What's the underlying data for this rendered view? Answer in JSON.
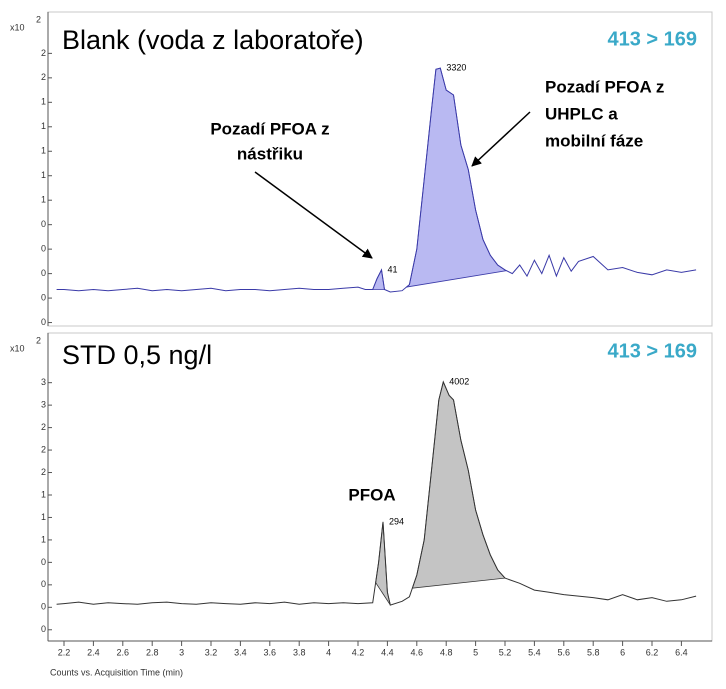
{
  "chart_data": [
    {
      "type": "line",
      "title": "Blank (voda z laboratoře)",
      "transition": "413 > 169",
      "y_multiplier": {
        "base": "x10",
        "exponent": 2
      },
      "color": "#3a3aa8",
      "fill": "#b9b9f2",
      "xlim": [
        2.1,
        6.55
      ],
      "ylim": [
        -0.02,
        2.53
      ],
      "yticks": [
        {
          "value": 0,
          "label": "0"
        },
        {
          "value": 0.2,
          "label": "0"
        },
        {
          "value": 0.4,
          "label": "0"
        },
        {
          "value": 0.6,
          "label": "0"
        },
        {
          "value": 0.8,
          "label": "0"
        },
        {
          "value": 1.0,
          "label": "1"
        },
        {
          "value": 1.2,
          "label": "1"
        },
        {
          "value": 1.4,
          "label": "1"
        },
        {
          "value": 1.6,
          "label": "1"
        },
        {
          "value": 1.8,
          "label": "1"
        },
        {
          "value": 2.0,
          "label": "2"
        },
        {
          "value": 2.2,
          "label": "2"
        }
      ],
      "x": [
        2.15,
        2.2,
        2.3,
        2.4,
        2.5,
        2.6,
        2.7,
        2.8,
        2.9,
        3.0,
        3.1,
        3.2,
        3.3,
        3.4,
        3.5,
        3.6,
        3.7,
        3.8,
        3.9,
        4.0,
        4.1,
        4.2,
        4.25,
        4.3,
        4.33,
        4.36,
        4.38,
        4.42,
        4.5,
        4.55,
        4.6,
        4.65,
        4.7,
        4.73,
        4.76,
        4.8,
        4.85,
        4.9,
        4.95,
        5.0,
        5.05,
        5.1,
        5.15,
        5.2,
        5.25,
        5.3,
        5.35,
        5.4,
        5.45,
        5.5,
        5.55,
        5.6,
        5.65,
        5.7,
        5.8,
        5.9,
        6.0,
        6.1,
        6.2,
        6.3,
        6.4,
        6.5
      ],
      "values": [
        0.27,
        0.27,
        0.26,
        0.27,
        0.26,
        0.27,
        0.28,
        0.26,
        0.27,
        0.26,
        0.27,
        0.28,
        0.26,
        0.27,
        0.27,
        0.26,
        0.27,
        0.28,
        0.27,
        0.27,
        0.28,
        0.29,
        0.27,
        0.27,
        0.36,
        0.43,
        0.27,
        0.25,
        0.26,
        0.31,
        0.6,
        1.17,
        1.74,
        2.07,
        2.08,
        1.9,
        1.86,
        1.45,
        1.25,
        0.92,
        0.68,
        0.55,
        0.47,
        0.43,
        0.4,
        0.47,
        0.38,
        0.51,
        0.4,
        0.55,
        0.38,
        0.53,
        0.42,
        0.5,
        0.54,
        0.43,
        0.45,
        0.41,
        0.39,
        0.43,
        0.41,
        0.43
      ],
      "peaks": [
        {
          "start": 4.3,
          "end": 4.38,
          "apex": 4.36,
          "value": 41
        },
        {
          "start": 4.53,
          "end": 5.21,
          "apex": 4.76,
          "value": 3320
        }
      ],
      "annotations": [
        {
          "lines": [
            "Pozadí PFOA z",
            "nástřiku"
          ]
        },
        {
          "lines": [
            "Pozadí PFOA z",
            "UHPLC a",
            "mobilní fáze"
          ]
        }
      ]
    },
    {
      "type": "line",
      "title": "STD 0,5 ng/l",
      "transition": "413 > 169",
      "y_multiplier": {
        "base": "x10",
        "exponent": 2
      },
      "color": "#333333",
      "fill": "#c4c4c4",
      "xlim": [
        2.1,
        6.55
      ],
      "ylim": [
        -0.15,
        3.95
      ],
      "xticks": [
        2.2,
        2.4,
        2.6,
        2.8,
        3,
        3.2,
        3.4,
        3.6,
        3.8,
        4,
        4.2,
        4.4,
        4.6,
        4.8,
        5,
        5.2,
        5.4,
        5.6,
        5.8,
        6,
        6.2,
        6.4
      ],
      "xlabel": "Counts vs. Acquisition Time (min)",
      "yticks": [
        {
          "value": 0,
          "label": "0"
        },
        {
          "value": 0.3,
          "label": "0"
        },
        {
          "value": 0.6,
          "label": "0"
        },
        {
          "value": 0.9,
          "label": "0"
        },
        {
          "value": 1.2,
          "label": "1"
        },
        {
          "value": 1.5,
          "label": "1"
        },
        {
          "value": 1.8,
          "label": "1"
        },
        {
          "value": 2.1,
          "label": "2"
        },
        {
          "value": 2.4,
          "label": "2"
        },
        {
          "value": 2.7,
          "label": "2"
        },
        {
          "value": 3.0,
          "label": "3"
        },
        {
          "value": 3.3,
          "label": "3"
        }
      ],
      "x": [
        2.15,
        2.2,
        2.3,
        2.4,
        2.5,
        2.6,
        2.7,
        2.8,
        2.9,
        3.0,
        3.1,
        3.2,
        3.3,
        3.4,
        3.5,
        3.6,
        3.7,
        3.8,
        3.9,
        4.0,
        4.1,
        4.2,
        4.3,
        4.34,
        4.37,
        4.4,
        4.42,
        4.5,
        4.55,
        4.6,
        4.65,
        4.7,
        4.75,
        4.78,
        4.82,
        4.85,
        4.9,
        4.95,
        5.0,
        5.05,
        5.1,
        5.15,
        5.2,
        5.3,
        5.4,
        5.5,
        5.6,
        5.7,
        5.8,
        5.9,
        6.0,
        6.1,
        6.2,
        6.3,
        6.4,
        6.5
      ],
      "values": [
        0.34,
        0.35,
        0.37,
        0.34,
        0.36,
        0.35,
        0.34,
        0.36,
        0.37,
        0.35,
        0.34,
        0.36,
        0.35,
        0.34,
        0.36,
        0.35,
        0.37,
        0.34,
        0.36,
        0.35,
        0.36,
        0.35,
        0.36,
        0.9,
        1.44,
        0.5,
        0.33,
        0.38,
        0.44,
        0.73,
        1.2,
        2.13,
        3.07,
        3.31,
        3.13,
        3.07,
        2.53,
        2.13,
        1.6,
        1.27,
        1.0,
        0.8,
        0.69,
        0.62,
        0.53,
        0.5,
        0.47,
        0.45,
        0.43,
        0.4,
        0.47,
        0.4,
        0.43,
        0.38,
        0.4,
        0.45
      ],
      "peaks": [
        {
          "start": 4.32,
          "end": 4.42,
          "apex": 4.37,
          "value": 294
        },
        {
          "start": 4.57,
          "end": 5.2,
          "apex": 4.78,
          "value": 4002
        }
      ],
      "annotations": [
        {
          "lines": [
            "PFOA"
          ]
        }
      ]
    }
  ]
}
